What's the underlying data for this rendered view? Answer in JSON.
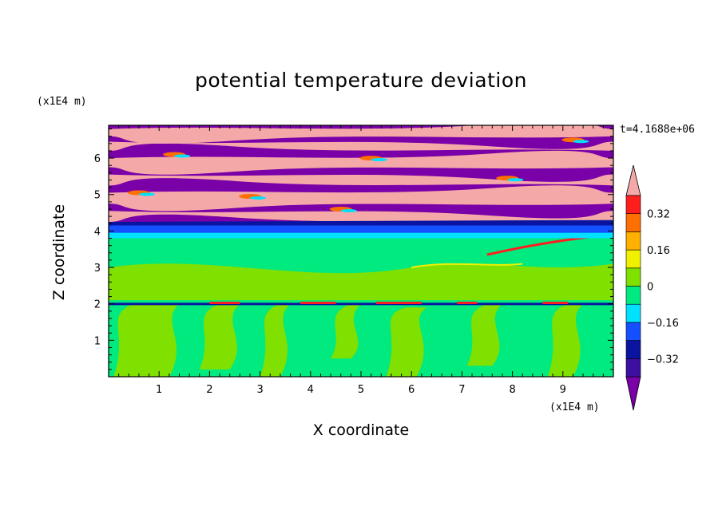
{
  "chart_data": {
    "type": "heatmap",
    "title": "potential temperature deviation",
    "xlabel": "X coordinate",
    "ylabel": "Z coordinate",
    "x_unit": "(x1E4 m)",
    "y_unit": "(x1E4 m)",
    "time_label": "t=4.1688e+06",
    "xlim": [
      0,
      10
    ],
    "ylim": [
      0,
      6.9
    ],
    "x_ticks": [
      "1",
      "2",
      "3",
      "4",
      "5",
      "6",
      "7",
      "8",
      "9"
    ],
    "y_ticks": [
      "1",
      "2",
      "3",
      "4",
      "5",
      "6"
    ],
    "colorbar": {
      "levels": [
        -0.48,
        -0.4,
        -0.32,
        -0.24,
        -0.16,
        -0.08,
        0,
        0.08,
        0.16,
        0.24,
        0.32,
        0.4,
        0.48
      ],
      "tick_labels": [
        "0.32",
        "0.16",
        "0",
        "−0.16",
        "−0.32"
      ],
      "tick_values": [
        0.32,
        0.16,
        0,
        -0.16,
        -0.32
      ],
      "colors": [
        "#7a00a8",
        "#3b0fa0",
        "#0a14a0",
        "#1450ff",
        "#00e0ff",
        "#00ea80",
        "#80e000",
        "#f0f000",
        "#ffb000",
        "#ff7000",
        "#ff1e1e",
        "#f5a8a8"
      ]
    },
    "regions": [
      {
        "name": "lower-layer",
        "z_range": [
          0,
          3.8
        ],
        "dominant": [
          "#00ea80",
          "#80e000"
        ]
      },
      {
        "name": "thin-interface",
        "z": 2.0,
        "dominant": [
          "#0a14a0",
          "#ff1e1e"
        ]
      },
      {
        "name": "transition",
        "z_range": [
          3.8,
          4.2
        ],
        "dominant": [
          "#1450ff",
          "#0a14a0"
        ]
      },
      {
        "name": "upper-layer-stratified-bands",
        "z_range": [
          4.2,
          6.9
        ],
        "dominant": [
          "#7a00a8",
          "#f5a8a8"
        ]
      }
    ]
  }
}
